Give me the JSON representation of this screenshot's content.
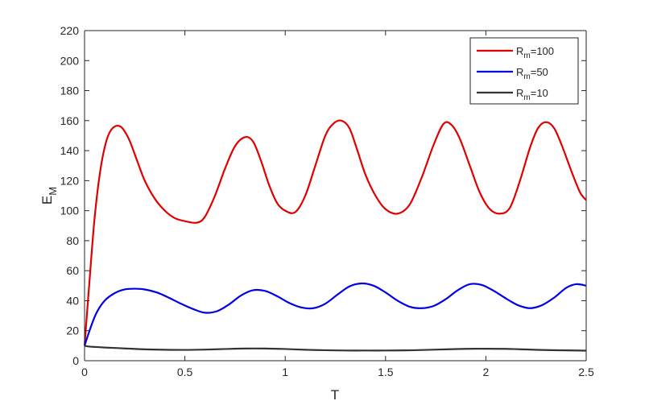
{
  "chart_data": {
    "type": "line",
    "xlabel": "T",
    "ylabel": {
      "main": "E",
      "sub": "M"
    },
    "xlim": [
      0,
      2.5
    ],
    "ylim": [
      0,
      220
    ],
    "x_ticks": [
      0,
      0.5,
      1,
      1.5,
      2,
      2.5
    ],
    "x_tick_labels": [
      "0",
      "0.5",
      "1",
      "1.5",
      "2",
      "2.5"
    ],
    "y_ticks": [
      0,
      20,
      40,
      60,
      80,
      100,
      120,
      140,
      160,
      180,
      200,
      220
    ],
    "y_tick_labels": [
      "0",
      "20",
      "40",
      "60",
      "80",
      "100",
      "120",
      "140",
      "160",
      "180",
      "200",
      "220"
    ],
    "grid": false,
    "legend_position": "top-right",
    "series": [
      {
        "name_main": "R",
        "name_sub": "m",
        "name_suffix": "=100",
        "color": "#e00000",
        "x": [
          0,
          0.02,
          0.05,
          0.08,
          0.11,
          0.14,
          0.18,
          0.22,
          0.26,
          0.3,
          0.35,
          0.4,
          0.45,
          0.5,
          0.56,
          0.6,
          0.65,
          0.7,
          0.75,
          0.8,
          0.84,
          0.88,
          0.92,
          0.96,
          1.0,
          1.05,
          1.1,
          1.15,
          1.2,
          1.24,
          1.28,
          1.32,
          1.36,
          1.4,
          1.45,
          1.5,
          1.56,
          1.62,
          1.68,
          1.74,
          1.79,
          1.83,
          1.87,
          1.92,
          1.97,
          2.02,
          2.07,
          2.12,
          2.17,
          2.22,
          2.26,
          2.3,
          2.34,
          2.38,
          2.43,
          2.47,
          2.5
        ],
        "y": [
          10,
          45,
          95,
          128,
          147,
          155,
          156,
          148,
          134,
          120,
          108,
          100,
          95,
          93,
          92,
          96,
          110,
          128,
          143,
          149,
          146,
          133,
          117,
          105,
          100,
          99,
          110,
          130,
          150,
          158,
          160,
          155,
          140,
          124,
          110,
          101,
          98,
          104,
          122,
          144,
          158,
          157,
          148,
          130,
          112,
          101,
          98,
          102,
          120,
          142,
          155,
          159,
          155,
          143,
          125,
          112,
          107
        ]
      },
      {
        "name_main": "R",
        "name_sub": "m",
        "name_suffix": "=50",
        "color": "#0000e6",
        "x": [
          0,
          0.03,
          0.06,
          0.1,
          0.15,
          0.2,
          0.25,
          0.3,
          0.36,
          0.42,
          0.48,
          0.54,
          0.6,
          0.66,
          0.72,
          0.78,
          0.84,
          0.9,
          0.96,
          1.02,
          1.08,
          1.14,
          1.2,
          1.26,
          1.32,
          1.38,
          1.44,
          1.5,
          1.56,
          1.62,
          1.68,
          1.74,
          1.8,
          1.86,
          1.92,
          1.98,
          2.04,
          2.1,
          2.16,
          2.22,
          2.28,
          2.34,
          2.4,
          2.45,
          2.5
        ],
        "y": [
          10,
          22,
          32,
          40,
          45,
          47.5,
          48,
          47.5,
          45.5,
          42,
          38,
          34.5,
          32,
          33,
          37.5,
          43.5,
          47,
          46.5,
          43,
          38.5,
          35.5,
          35,
          38,
          44,
          49.5,
          51.5,
          50,
          45.5,
          40,
          36,
          35,
          36.5,
          41,
          47,
          51,
          50.5,
          46.5,
          41.5,
          37,
          35,
          37,
          42,
          48.5,
          51,
          50
        ]
      },
      {
        "name_main": "R",
        "name_sub": "m",
        "name_suffix": "=10",
        "color": "#333333",
        "x": [
          0,
          0.02,
          0.05,
          0.1,
          0.2,
          0.3,
          0.4,
          0.5,
          0.6,
          0.7,
          0.8,
          0.9,
          1.0,
          1.1,
          1.2,
          1.3,
          1.4,
          1.5,
          1.6,
          1.7,
          1.8,
          1.9,
          2.0,
          2.1,
          2.2,
          2.3,
          2.4,
          2.5
        ],
        "y": [
          10,
          9.5,
          9.2,
          8.8,
          8.2,
          7.6,
          7.3,
          7.2,
          7.4,
          7.8,
          8.1,
          8.1,
          7.8,
          7.3,
          7,
          6.8,
          6.8,
          6.8,
          6.9,
          7.2,
          7.6,
          7.9,
          8,
          7.9,
          7.5,
          7.1,
          6.9,
          6.7
        ]
      }
    ]
  }
}
